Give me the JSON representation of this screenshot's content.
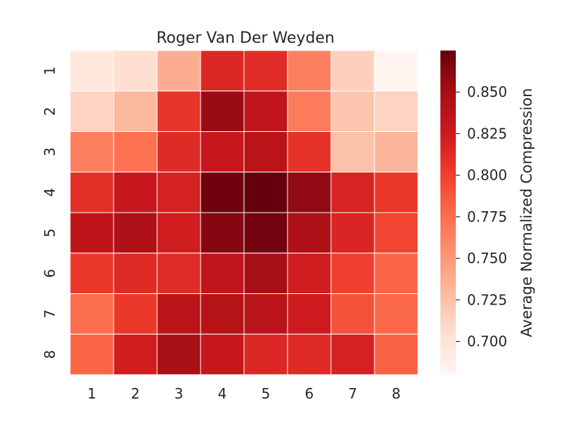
{
  "chart_data": {
    "type": "heatmap",
    "title": "Roger Van Der Weyden",
    "x_categories": [
      "1",
      "2",
      "3",
      "4",
      "5",
      "6",
      "7",
      "8"
    ],
    "y_categories": [
      "1",
      "2",
      "3",
      "4",
      "5",
      "6",
      "7",
      "8"
    ],
    "values": [
      [
        0.695,
        0.705,
        0.737,
        0.815,
        0.812,
        0.765,
        0.715,
        0.68
      ],
      [
        0.713,
        0.73,
        0.807,
        0.855,
        0.833,
        0.767,
        0.722,
        0.712
      ],
      [
        0.765,
        0.773,
        0.813,
        0.83,
        0.837,
        0.808,
        0.725,
        0.732
      ],
      [
        0.81,
        0.83,
        0.82,
        0.872,
        0.875,
        0.858,
        0.818,
        0.805
      ],
      [
        0.835,
        0.845,
        0.823,
        0.863,
        0.87,
        0.845,
        0.817,
        0.797
      ],
      [
        0.805,
        0.813,
        0.812,
        0.833,
        0.85,
        0.823,
        0.8,
        0.78
      ],
      [
        0.775,
        0.805,
        0.837,
        0.84,
        0.838,
        0.825,
        0.79,
        0.778
      ],
      [
        0.78,
        0.823,
        0.848,
        0.83,
        0.815,
        0.813,
        0.82,
        0.782
      ]
    ],
    "color_range": [
      0.68,
      0.875
    ],
    "colorbar": {
      "label": "Average Normalized Compression",
      "ticks": [
        0.7,
        0.725,
        0.75,
        0.775,
        0.8,
        0.825,
        0.85
      ],
      "tick_labels": [
        "0.700",
        "0.725",
        "0.750",
        "0.775",
        "0.800",
        "0.825",
        "0.850"
      ]
    },
    "colormap": [
      "#fff5f0",
      "#fee0d2",
      "#fcbba1",
      "#fc9272",
      "#fb6a4a",
      "#ef3b2c",
      "#cb181d",
      "#a50f15",
      "#67000d"
    ],
    "grid_line_color": "#ffffff"
  }
}
